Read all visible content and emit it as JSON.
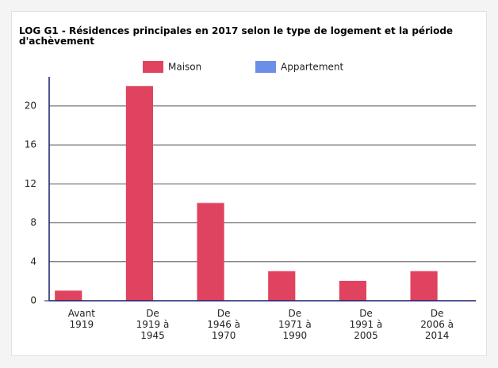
{
  "chart_data": {
    "type": "bar",
    "title": "LOG G1 - Résidences principales en 2017 selon le type de logement et la période d'achèvement",
    "categories": [
      "Avant 1919",
      "De 1919 à 1945",
      "De 1946 à 1970",
      "De 1971 à 1990",
      "De 1991 à 2005",
      "De 2006 à 2014"
    ],
    "series": [
      {
        "name": "Maison",
        "color": "#e0435f",
        "values": [
          1,
          22,
          10,
          3,
          2,
          3
        ]
      },
      {
        "name": "Appartement",
        "color": "#6b8ee8",
        "values": [
          0,
          0,
          0,
          0,
          0,
          0
        ]
      }
    ],
    "ylim": [
      0,
      23
    ],
    "yticks": [
      0,
      4,
      8,
      12,
      16,
      20
    ],
    "grid": true,
    "legend": "top"
  }
}
